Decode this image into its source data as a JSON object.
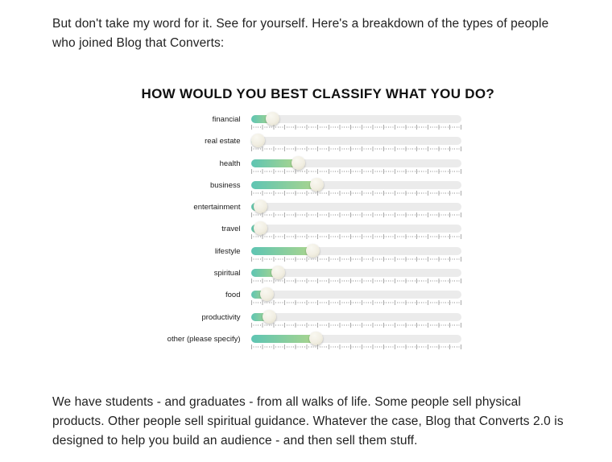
{
  "intro": {
    "text": "But don't take my word for it. See for yourself. Here's a breakdown of the types of people who joined Blog that Converts:"
  },
  "outro": {
    "text": "We have students - and graduates - from all walks of life. Some people sell physical products. Other people sell spiritual guidance. Whatever the case, Blog that Converts 2.0 is designed to help you build an audience - and then sell them stuff."
  },
  "chart_data": {
    "type": "bar",
    "subtype": "horizontal-slider-bars",
    "title": "HOW WOULD YOU BEST CLASSIFY WHAT YOU DO?",
    "categories": [
      "financial",
      "real estate",
      "health",
      "business",
      "entertainment",
      "travel",
      "lifestyle",
      "spiritual",
      "food",
      "productivity",
      "other (please specify)"
    ],
    "values": [
      10.5,
      3.5,
      22.5,
      31.5,
      4.5,
      4.5,
      29.5,
      13,
      7.5,
      9,
      31
    ],
    "xlim": [
      0,
      100
    ],
    "unit": "percent of track length (estimated from knob positions)",
    "legend": false,
    "grid": false,
    "colors": {
      "fill_start": "#5ec5b3",
      "fill_end": "#abd58d",
      "track": "#ebebeb",
      "knob": "#f1eee2",
      "tick": "#a9a9a9",
      "dot": "#c4c4c4"
    }
  }
}
